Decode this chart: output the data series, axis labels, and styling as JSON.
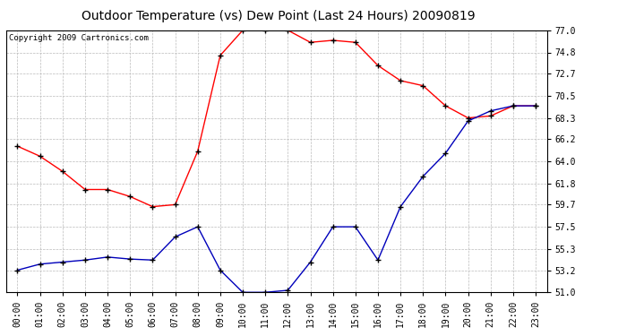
{
  "title": "Outdoor Temperature (vs) Dew Point (Last 24 Hours) 20090819",
  "copyright_text": "Copyright 2009 Cartronics.com",
  "hours": [
    "00:00",
    "01:00",
    "02:00",
    "03:00",
    "04:00",
    "05:00",
    "06:00",
    "07:00",
    "08:00",
    "09:00",
    "10:00",
    "11:00",
    "12:00",
    "13:00",
    "14:00",
    "15:00",
    "16:00",
    "17:00",
    "18:00",
    "19:00",
    "20:00",
    "21:00",
    "22:00",
    "23:00"
  ],
  "temp_red": [
    65.5,
    64.5,
    63.0,
    61.2,
    61.2,
    60.5,
    59.5,
    59.7,
    65.0,
    74.5,
    77.0,
    77.0,
    77.0,
    75.8,
    76.0,
    75.8,
    73.5,
    72.0,
    71.5,
    69.5,
    68.3,
    68.5,
    69.5,
    69.5
  ],
  "dew_blue": [
    53.2,
    53.8,
    54.0,
    54.2,
    54.5,
    54.3,
    54.2,
    56.5,
    57.5,
    53.2,
    51.0,
    51.0,
    51.2,
    54.0,
    57.5,
    57.5,
    54.2,
    59.5,
    62.5,
    64.8,
    68.0,
    69.0,
    69.5,
    69.5
  ],
  "ylim_min": 51.0,
  "ylim_max": 77.0,
  "yticks": [
    51.0,
    53.2,
    55.3,
    57.5,
    59.7,
    61.8,
    64.0,
    66.2,
    68.3,
    70.5,
    72.7,
    74.8,
    77.0
  ],
  "red_color": "#ff0000",
  "blue_color": "#0000bb",
  "bg_color": "#ffffff",
  "plot_bg_color": "#ffffff",
  "grid_color": "#bbbbbb",
  "title_fontsize": 10,
  "tick_fontsize": 7,
  "copyright_fontsize": 6.5,
  "marker_size": 4,
  "line_width": 1.0
}
